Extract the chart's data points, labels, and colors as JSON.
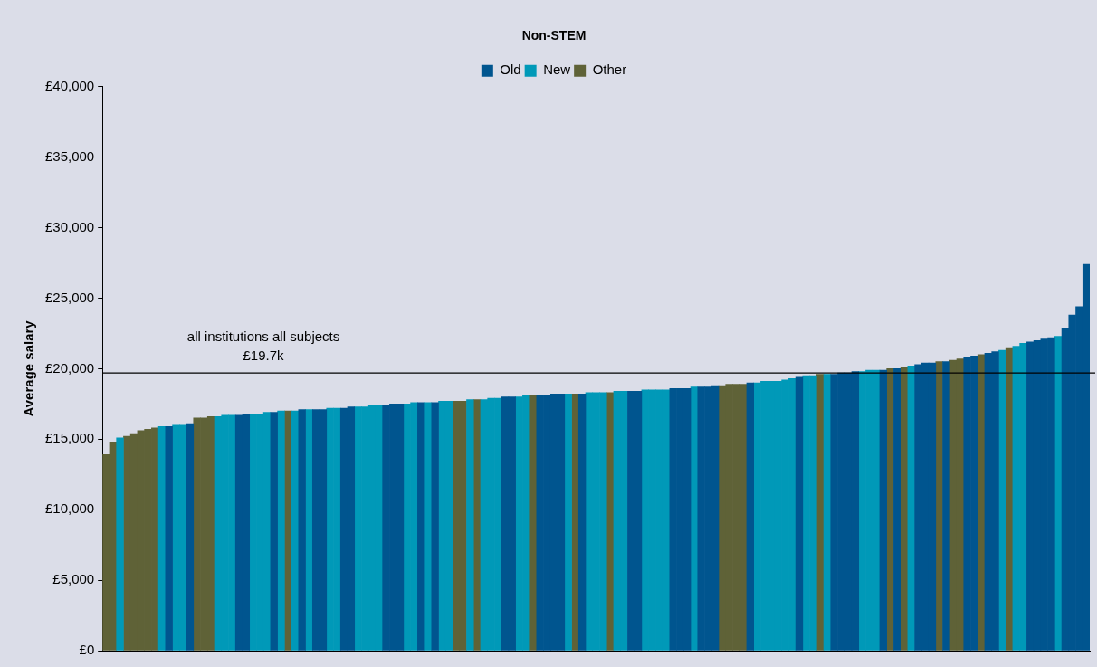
{
  "chart_data": {
    "type": "bar",
    "title": "Non-STEM",
    "ylabel": "Average salary",
    "categories": [
      null,
      null,
      null,
      null,
      null,
      null,
      null,
      null,
      null,
      null,
      null,
      null,
      null,
      null,
      null,
      null,
      null,
      null,
      null,
      null,
      null,
      null,
      null,
      null,
      null,
      null,
      null,
      null,
      null,
      null,
      null,
      null,
      null,
      null,
      null,
      null,
      null,
      null,
      null,
      null,
      null,
      null,
      null,
      null,
      null,
      null,
      null,
      null,
      null,
      null,
      null,
      null,
      null,
      null,
      null,
      null,
      null,
      null,
      null,
      null,
      null,
      null,
      null,
      null,
      null,
      null,
      null,
      null,
      null,
      null,
      null,
      null,
      null,
      null,
      null,
      null,
      null,
      null,
      null,
      null,
      null,
      null,
      null,
      null,
      null,
      null,
      null,
      null,
      null,
      null,
      null,
      null,
      null,
      null,
      null,
      null,
      null,
      null,
      null,
      null,
      null,
      null,
      null,
      null,
      null,
      null,
      null,
      null,
      null,
      null,
      null,
      null,
      null,
      null,
      null,
      null,
      null,
      null,
      null,
      null,
      null,
      null,
      null,
      null,
      null,
      null,
      null,
      null,
      null,
      null,
      null,
      null,
      null,
      null,
      null,
      null,
      null,
      null,
      null,
      null,
      null
    ],
    "series": [
      {
        "name": "Old",
        "color": "#00558f",
        "values": [
          null,
          null,
          null,
          null,
          null,
          null,
          null,
          null,
          null,
          15900,
          null,
          null,
          16100,
          null,
          null,
          null,
          null,
          null,
          null,
          16700,
          16800,
          null,
          null,
          null,
          16900,
          null,
          null,
          null,
          17100,
          null,
          17100,
          17100,
          null,
          null,
          17200,
          17300,
          null,
          null,
          null,
          null,
          17400,
          17500,
          17500,
          null,
          null,
          17600,
          null,
          17600,
          null,
          null,
          null,
          null,
          null,
          null,
          null,
          null,
          null,
          18000,
          18000,
          null,
          null,
          null,
          18100,
          18100,
          18200,
          18200,
          null,
          null,
          18200,
          null,
          null,
          null,
          null,
          null,
          null,
          18400,
          18400,
          null,
          null,
          null,
          null,
          18600,
          18600,
          18600,
          null,
          18700,
          18700,
          18800,
          null,
          null,
          null,
          null,
          19000,
          null,
          null,
          null,
          null,
          null,
          null,
          19400,
          null,
          null,
          null,
          null,
          19600,
          19700,
          19700,
          19800,
          null,
          null,
          null,
          19900,
          null,
          20000,
          null,
          null,
          20300,
          20400,
          20400,
          null,
          20500,
          null,
          null,
          20800,
          20900,
          null,
          21100,
          21200,
          null,
          null,
          null,
          null,
          21900,
          22000,
          22100,
          22200,
          null,
          22900,
          23800,
          24400,
          27400
        ]
      },
      {
        "name": "New",
        "color": "#0099b8",
        "values": [
          null,
          null,
          15100,
          null,
          null,
          null,
          null,
          null,
          15900,
          null,
          16000,
          16000,
          null,
          null,
          null,
          null,
          16600,
          16700,
          16700,
          null,
          null,
          16800,
          16800,
          16900,
          null,
          17000,
          null,
          17000,
          null,
          17100,
          null,
          null,
          17200,
          17200,
          null,
          null,
          17300,
          17300,
          17400,
          17400,
          null,
          null,
          null,
          17500,
          17600,
          null,
          17600,
          null,
          17700,
          17700,
          null,
          null,
          17800,
          null,
          17800,
          17900,
          17900,
          null,
          null,
          18000,
          18100,
          null,
          null,
          null,
          null,
          null,
          18200,
          null,
          null,
          18300,
          18300,
          18300,
          null,
          18400,
          18400,
          null,
          null,
          18500,
          18500,
          18500,
          18500,
          null,
          null,
          null,
          18700,
          null,
          null,
          null,
          null,
          null,
          null,
          null,
          null,
          19000,
          19100,
          19100,
          19100,
          19200,
          19300,
          null,
          19500,
          19500,
          null,
          19600,
          null,
          null,
          null,
          null,
          19800,
          19900,
          19900,
          null,
          null,
          null,
          null,
          20200,
          null,
          null,
          null,
          null,
          null,
          null,
          null,
          null,
          null,
          null,
          null,
          null,
          21300,
          null,
          21600,
          21800,
          null,
          null,
          null,
          null,
          22300,
          null,
          null,
          null,
          null
        ]
      },
      {
        "name": "Other",
        "color": "#5f6237",
        "values": [
          13900,
          14800,
          null,
          15200,
          15400,
          15600,
          15700,
          15800,
          null,
          null,
          null,
          null,
          null,
          16500,
          16500,
          16600,
          null,
          null,
          null,
          null,
          null,
          null,
          null,
          null,
          null,
          null,
          17000,
          null,
          null,
          null,
          null,
          null,
          null,
          null,
          null,
          null,
          null,
          null,
          null,
          null,
          null,
          null,
          null,
          null,
          null,
          null,
          null,
          null,
          null,
          null,
          17700,
          17700,
          null,
          17800,
          null,
          null,
          null,
          null,
          null,
          null,
          null,
          18100,
          null,
          null,
          null,
          null,
          null,
          18200,
          null,
          null,
          null,
          null,
          18300,
          null,
          null,
          null,
          null,
          null,
          null,
          null,
          null,
          null,
          null,
          null,
          null,
          null,
          null,
          null,
          18800,
          18900,
          18900,
          18900,
          null,
          null,
          null,
          null,
          null,
          null,
          null,
          null,
          null,
          null,
          19600,
          null,
          null,
          null,
          null,
          null,
          null,
          null,
          null,
          null,
          20000,
          null,
          20100,
          null,
          null,
          null,
          null,
          20500,
          null,
          20600,
          20700,
          null,
          null,
          21000,
          null,
          null,
          null,
          21500,
          null,
          null,
          null,
          null,
          null,
          null,
          null,
          null,
          null,
          null,
          null
        ]
      }
    ],
    "ylim": [
      0,
      40000
    ],
    "yticks": [
      {
        "value": 0,
        "label": "£0"
      },
      {
        "value": 5000,
        "label": "£5,000"
      },
      {
        "value": 10000,
        "label": "£10,000"
      },
      {
        "value": 15000,
        "label": "£15,000"
      },
      {
        "value": 20000,
        "label": "£20,000"
      },
      {
        "value": 25000,
        "label": "£25,000"
      },
      {
        "value": 30000,
        "label": "£30,000"
      },
      {
        "value": 35000,
        "label": "£35,000"
      },
      {
        "value": 40000,
        "label": "£40,000"
      }
    ],
    "ref_lines": [
      {
        "axis": "y",
        "value": 19700,
        "label": "all institutions all subjects\n£19.7k",
        "color": "#000000"
      }
    ],
    "legend": "top",
    "grid": false,
    "tick_labels": "y"
  }
}
